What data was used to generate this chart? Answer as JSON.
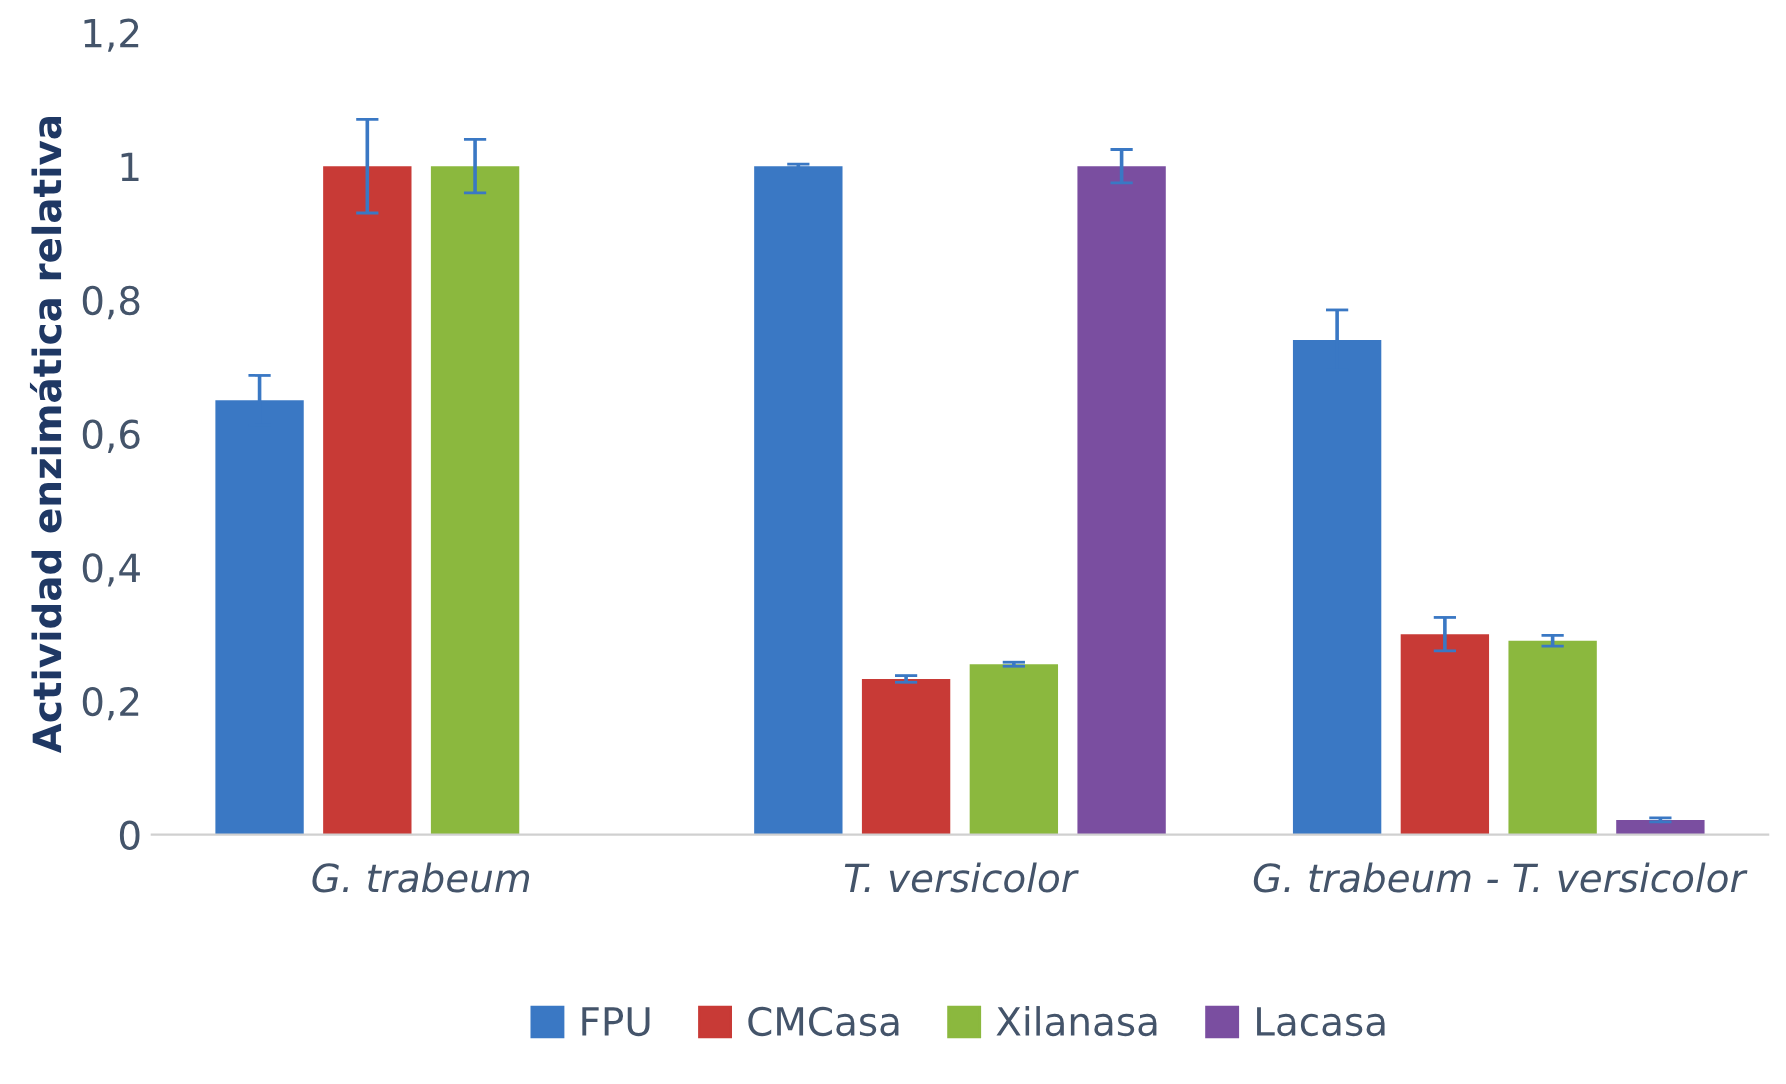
{
  "chart_data": {
    "type": "bar",
    "ylabel": "Actividad enzimática relativa",
    "categories": [
      "G. trabeum",
      "T. versicolor",
      "G. trabeum - T. versicolor"
    ],
    "series": [
      {
        "name": "FPU",
        "color": "#3a78c4",
        "values": [
          0.65,
          1.0,
          0.74
        ],
        "errors": [
          0.037,
          0.003,
          0.045
        ]
      },
      {
        "name": "CMCasa",
        "color": "#c83a36",
        "values": [
          1.0,
          0.233,
          0.3
        ],
        "errors": [
          0.07,
          0.005,
          0.025
        ]
      },
      {
        "name": "Xilanasa",
        "color": "#8bb83e",
        "values": [
          1.0,
          0.255,
          0.29
        ],
        "errors": [
          0.04,
          0.003,
          0.008
        ]
      },
      {
        "name": "Lacasa",
        "color": "#7a4ea0",
        "values": [
          0.0,
          1.0,
          0.022
        ],
        "errors": [
          null,
          0.025,
          0.003
        ]
      }
    ],
    "ylim": [
      0,
      1.2
    ],
    "yticks": [
      0,
      {
        "value": 0.2,
        "label": "0,2"
      },
      {
        "value": 0.4,
        "label": "0,4"
      },
      {
        "value": 0.6,
        "label": "0,6"
      },
      {
        "value": 0.8,
        "label": "0,8"
      },
      1,
      {
        "value": 1.2,
        "label": "1,2"
      }
    ],
    "grid": false,
    "legend": "bottom"
  }
}
